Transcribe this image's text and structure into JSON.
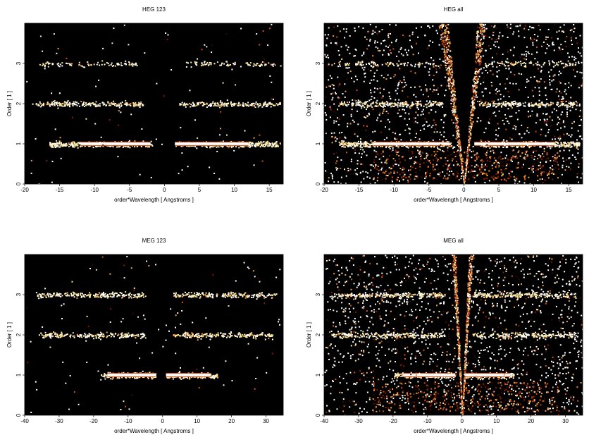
{
  "chart_data": [
    {
      "type": "heatmap",
      "title": "HEG 123",
      "xlabel": "order*Wavelength [ Angstroms ]",
      "ylabel": "Order [ 1 ]",
      "xlim": [
        -20,
        17
      ],
      "ylim": [
        0,
        4
      ],
      "xticks": [
        -20,
        -15,
        -10,
        -5,
        0,
        5,
        10,
        15
      ],
      "yticks": [
        0,
        1,
        2,
        3
      ],
      "background": "#000000",
      "colormap": [
        "#3a0a00",
        "#8b1a00",
        "#d2561a",
        "#f4a040",
        "#ffe89a",
        "#ffffff"
      ],
      "bands": [
        {
          "order": 1,
          "x_ranges": [
            [
              -16.5,
              -1.8
            ],
            [
              1.5,
              16.5
            ]
          ],
          "core_ranges": [
            [
              -12,
              -2
            ],
            [
              1.5,
              12
            ]
          ],
          "density": "high"
        },
        {
          "order": 2,
          "x_ranges": [
            [
              -18.5,
              -3
            ],
            [
              2,
              16.5
            ]
          ],
          "density": "medium"
        },
        {
          "order": 3,
          "x_ranges": [
            [
              -18,
              -4
            ],
            [
              3,
              16
            ]
          ],
          "density": "low"
        }
      ]
    },
    {
      "type": "heatmap",
      "title": "HEG all",
      "xlabel": "order*Wavelength [ Angstroms ]",
      "ylabel": "Order [ 1 ]",
      "xlim": [
        -20,
        17
      ],
      "ylim": [
        0,
        4
      ],
      "xticks": [
        -20,
        -15,
        -10,
        -5,
        0,
        5,
        10,
        15
      ],
      "yticks": [
        0,
        1,
        2,
        3
      ],
      "background": "#000000",
      "colormap": [
        "#3a0a00",
        "#8b1a00",
        "#d2561a",
        "#f4a040",
        "#ffe89a",
        "#ffffff"
      ],
      "bands": [
        {
          "order": 1,
          "x_ranges": [
            [
              -18,
              -1.8
            ],
            [
              1.5,
              16.5
            ]
          ],
          "core_ranges": [
            [
              -13,
              -2
            ],
            [
              1.5,
              13
            ]
          ],
          "density": "high"
        },
        {
          "order": 2,
          "x_ranges": [
            [
              -18,
              -3
            ],
            [
              2,
              16.5
            ]
          ],
          "density": "medium"
        },
        {
          "order": 3,
          "x_ranges": [
            [
              -18,
              -4
            ],
            [
              3,
              16.5
            ]
          ],
          "density": "low"
        }
      ],
      "zero_order_wedge": {
        "apex_x": 0,
        "left_slope_x_at_top": -5.5,
        "right_slope_x_at_top": 4.5
      }
    },
    {
      "type": "heatmap",
      "title": "MEG 123",
      "xlabel": "order*Wavelength [ Angstroms ]",
      "ylabel": "Order [ 1 ]",
      "xlim": [
        -40,
        35
      ],
      "ylim": [
        0,
        4
      ],
      "xticks": [
        -40,
        -30,
        -20,
        -10,
        0,
        10,
        20,
        30
      ],
      "yticks": [
        0,
        1,
        2,
        3
      ],
      "background": "#000000",
      "colormap": [
        "#3a0a00",
        "#8b1a00",
        "#d2561a",
        "#f4a040",
        "#ffe89a",
        "#ffffff"
      ],
      "bands": [
        {
          "order": 1,
          "x_ranges": [
            [
              -18,
              -2
            ],
            [
              1,
              16
            ]
          ],
          "core_ranges": [
            [
              -16,
              -2
            ],
            [
              1,
              14
            ]
          ],
          "density": "high"
        },
        {
          "order": 2,
          "x_ranges": [
            [
              -36,
              -5
            ],
            [
              3,
              32
            ]
          ],
          "density": "medium"
        },
        {
          "order": 3,
          "x_ranges": [
            [
              -37,
              -5
            ],
            [
              3,
              33
            ]
          ],
          "density": "medium"
        }
      ]
    },
    {
      "type": "heatmap",
      "title": "MEG all",
      "xlabel": "order*Wavelength [ Angstroms ]",
      "ylabel": "Order [ 1 ]",
      "xlim": [
        -40,
        35
      ],
      "ylim": [
        0,
        4
      ],
      "xticks": [
        -40,
        -30,
        -20,
        -10,
        0,
        10,
        20,
        30
      ],
      "yticks": [
        0,
        1,
        2,
        3
      ],
      "background": "#000000",
      "colormap": [
        "#3a0a00",
        "#8b1a00",
        "#d2561a",
        "#f4a040",
        "#ffe89a",
        "#ffffff"
      ],
      "bands": [
        {
          "order": 1,
          "x_ranges": [
            [
              -20,
              -2
            ],
            [
              1,
              15
            ]
          ],
          "core_ranges": [
            [
              -17,
              -2
            ],
            [
              1,
              14
            ]
          ],
          "density": "high"
        },
        {
          "order": 2,
          "x_ranges": [
            [
              -38,
              -5
            ],
            [
              3,
              33
            ]
          ],
          "density": "medium"
        },
        {
          "order": 3,
          "x_ranges": [
            [
              -38,
              -5
            ],
            [
              3,
              33
            ]
          ],
          "density": "medium"
        }
      ],
      "zero_order_wedge": {
        "apex_x": 0,
        "left_slope_x_at_top": -4.5,
        "right_slope_x_at_top": 4.5
      }
    }
  ]
}
